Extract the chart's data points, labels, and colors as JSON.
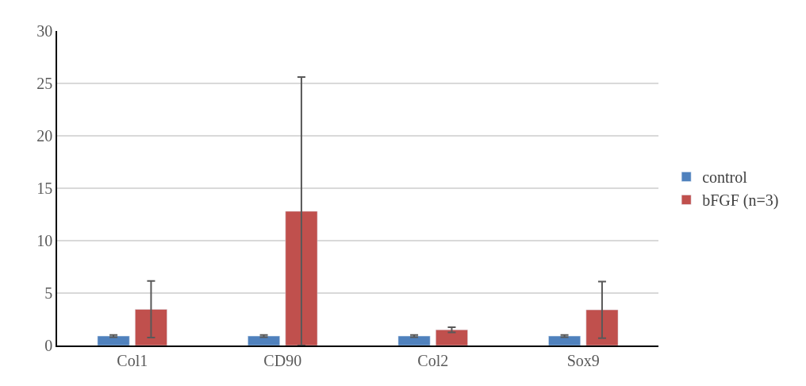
{
  "chart_data": {
    "type": "bar",
    "categories": [
      "Col1",
      "CD90",
      "Col2",
      "Sox9"
    ],
    "series": [
      {
        "name": "control",
        "color": "#4f81bd",
        "values": [
          0.9,
          0.9,
          0.9,
          0.9
        ],
        "errors": [
          0.1,
          0.1,
          0.1,
          0.1
        ]
      },
      {
        "name": "bFGF (n=3)",
        "color": "#c0504d",
        "values": [
          3.45,
          12.8,
          1.5,
          3.4
        ],
        "errors": [
          2.7,
          12.8,
          0.25,
          2.7
        ]
      }
    ],
    "ylim": [
      0,
      30
    ],
    "yticks": [
      0,
      5,
      10,
      15,
      20,
      25,
      30
    ],
    "grid": "y",
    "legend": "right"
  }
}
